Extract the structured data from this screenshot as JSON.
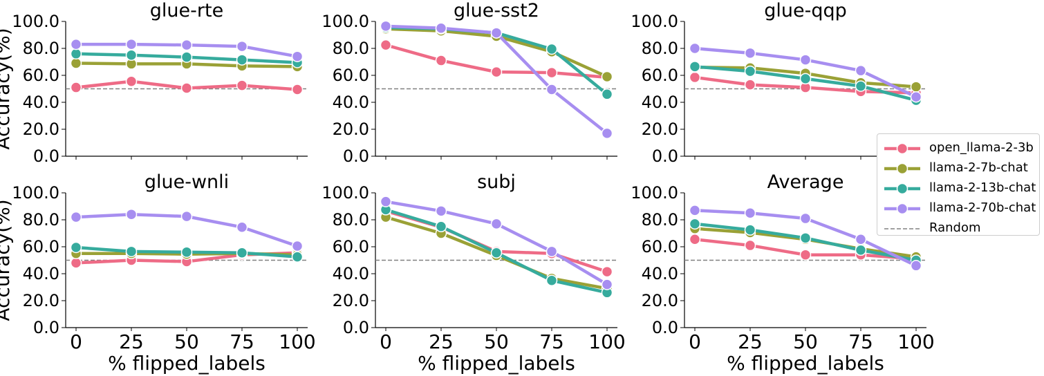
{
  "chart_data": [
    {
      "type": "line",
      "title": "glue-rte",
      "xlabel": "",
      "ylabel": "Accuracy(%)",
      "x": [
        0,
        25,
        50,
        75,
        100
      ],
      "ylim": [
        0,
        100
      ],
      "yticks": [
        "0.0",
        "20.0",
        "40.0",
        "60.0",
        "80.0",
        "100.0"
      ],
      "xticks": [],
      "random_baseline": 50,
      "series": [
        {
          "name": "open_llama-2-3b",
          "values": [
            51,
            55.5,
            50.5,
            52.5,
            49.5
          ]
        },
        {
          "name": "llama-2-7b-chat",
          "values": [
            69,
            68.5,
            68.5,
            67,
            66.5
          ]
        },
        {
          "name": "llama-2-13b-chat",
          "values": [
            76,
            75,
            73.5,
            71.5,
            69.5
          ]
        },
        {
          "name": "llama-2-70b-chat",
          "values": [
            83,
            83,
            82.5,
            81.5,
            74
          ]
        }
      ]
    },
    {
      "type": "line",
      "title": "glue-sst2",
      "xlabel": "",
      "ylabel": "",
      "x": [
        0,
        25,
        50,
        75,
        100
      ],
      "ylim": [
        0,
        100
      ],
      "yticks": [
        "0.0",
        "20.0",
        "40.0",
        "60.0",
        "80.0",
        "100.0"
      ],
      "xticks": [],
      "random_baseline": 50,
      "series": [
        {
          "name": "open_llama-2-3b",
          "values": [
            82.5,
            71,
            62.5,
            62,
            58.5
          ]
        },
        {
          "name": "llama-2-7b-chat",
          "values": [
            94.5,
            93,
            89,
            77.5,
            59
          ]
        },
        {
          "name": "llama-2-13b-chat",
          "values": [
            95.5,
            94.5,
            91.5,
            79.5,
            46
          ]
        },
        {
          "name": "llama-2-70b-chat",
          "values": [
            96.5,
            95,
            91.5,
            49.5,
            17
          ]
        }
      ]
    },
    {
      "type": "line",
      "title": "glue-qqp",
      "xlabel": "",
      "ylabel": "",
      "x": [
        0,
        25,
        50,
        75,
        100
      ],
      "ylim": [
        0,
        100
      ],
      "yticks": [
        "0.0",
        "20.0",
        "40.0",
        "60.0",
        "80.0",
        "100.0"
      ],
      "xticks": [],
      "random_baseline": 50,
      "series": [
        {
          "name": "open_llama-2-3b",
          "values": [
            58.5,
            53,
            51,
            48,
            47
          ]
        },
        {
          "name": "llama-2-7b-chat",
          "values": [
            66,
            65.5,
            61.5,
            54.5,
            51.5
          ]
        },
        {
          "name": "llama-2-13b-chat",
          "values": [
            66.5,
            63,
            57.5,
            52,
            41.5
          ]
        },
        {
          "name": "llama-2-70b-chat",
          "values": [
            80,
            76.5,
            71.5,
            63.5,
            44
          ]
        }
      ]
    },
    {
      "type": "line",
      "title": "glue-wnli",
      "xlabel": "% flipped_labels",
      "ylabel": "Accuracy(%)",
      "x": [
        0,
        25,
        50,
        75,
        100
      ],
      "ylim": [
        0,
        100
      ],
      "yticks": [
        "0.0",
        "20.0",
        "40.0",
        "60.0",
        "80.0",
        "100.0"
      ],
      "xticks": [
        "0",
        "25",
        "50",
        "75",
        "100"
      ],
      "random_baseline": 50,
      "series": [
        {
          "name": "open_llama-2-3b",
          "values": [
            48,
            50,
            49,
            54,
            55.5
          ]
        },
        {
          "name": "llama-2-7b-chat",
          "values": [
            55,
            55,
            54.5,
            55,
            54
          ]
        },
        {
          "name": "llama-2-13b-chat",
          "values": [
            59.5,
            56.5,
            56,
            55.5,
            52.5
          ]
        },
        {
          "name": "llama-2-70b-chat",
          "values": [
            82,
            84,
            82.5,
            74.5,
            60.5
          ]
        }
      ]
    },
    {
      "type": "line",
      "title": "subj",
      "xlabel": "% flipped_labels",
      "ylabel": "",
      "x": [
        0,
        25,
        50,
        75,
        100
      ],
      "ylim": [
        0,
        100
      ],
      "yticks": [
        "0.0",
        "20.0",
        "40.0",
        "60.0",
        "80.0",
        "100.0"
      ],
      "xticks": [
        "0",
        "25",
        "50",
        "75",
        "100"
      ],
      "random_baseline": 50,
      "series": [
        {
          "name": "open_llama-2-3b",
          "values": [
            86.5,
            74.5,
            56.5,
            55,
            41.5
          ]
        },
        {
          "name": "llama-2-7b-chat",
          "values": [
            82,
            70,
            53.5,
            36.5,
            29
          ]
        },
        {
          "name": "llama-2-13b-chat",
          "values": [
            87.5,
            75,
            55.5,
            35,
            26
          ]
        },
        {
          "name": "llama-2-70b-chat",
          "values": [
            93.5,
            86.5,
            77,
            56.5,
            32
          ]
        }
      ]
    },
    {
      "type": "line",
      "title": "Average",
      "xlabel": "% flipped_labels",
      "ylabel": "",
      "x": [
        0,
        25,
        50,
        75,
        100
      ],
      "ylim": [
        0,
        100
      ],
      "yticks": [
        "0.0",
        "20.0",
        "40.0",
        "60.0",
        "80.0",
        "100.0"
      ],
      "xticks": [
        "0",
        "25",
        "50",
        "75",
        "100"
      ],
      "random_baseline": 50,
      "series": [
        {
          "name": "open_llama-2-3b",
          "values": [
            65.5,
            61,
            54,
            54,
            51
          ]
        },
        {
          "name": "llama-2-7b-chat",
          "values": [
            73.5,
            70.5,
            65.5,
            58.5,
            52.5
          ]
        },
        {
          "name": "llama-2-13b-chat",
          "values": [
            77,
            72.5,
            66.5,
            57.5,
            50
          ]
        },
        {
          "name": "llama-2-70b-chat",
          "values": [
            87,
            85,
            81,
            65.5,
            46
          ]
        }
      ]
    }
  ],
  "series_colors": {
    "open_llama-2-3b": "#ee6b86",
    "llama-2-7b-chat": "#9aa136",
    "llama-2-13b-chat": "#36ab9d",
    "llama-2-70b-chat": "#a78ef0"
  },
  "random_color": "#808080",
  "legend": {
    "entries": [
      {
        "label": "open_llama-2-3b",
        "kind": "series"
      },
      {
        "label": "llama-2-7b-chat",
        "kind": "series"
      },
      {
        "label": "llama-2-13b-chat",
        "kind": "series"
      },
      {
        "label": "llama-2-70b-chat",
        "kind": "series"
      },
      {
        "label": "Random",
        "kind": "baseline"
      }
    ],
    "placement": "right"
  }
}
